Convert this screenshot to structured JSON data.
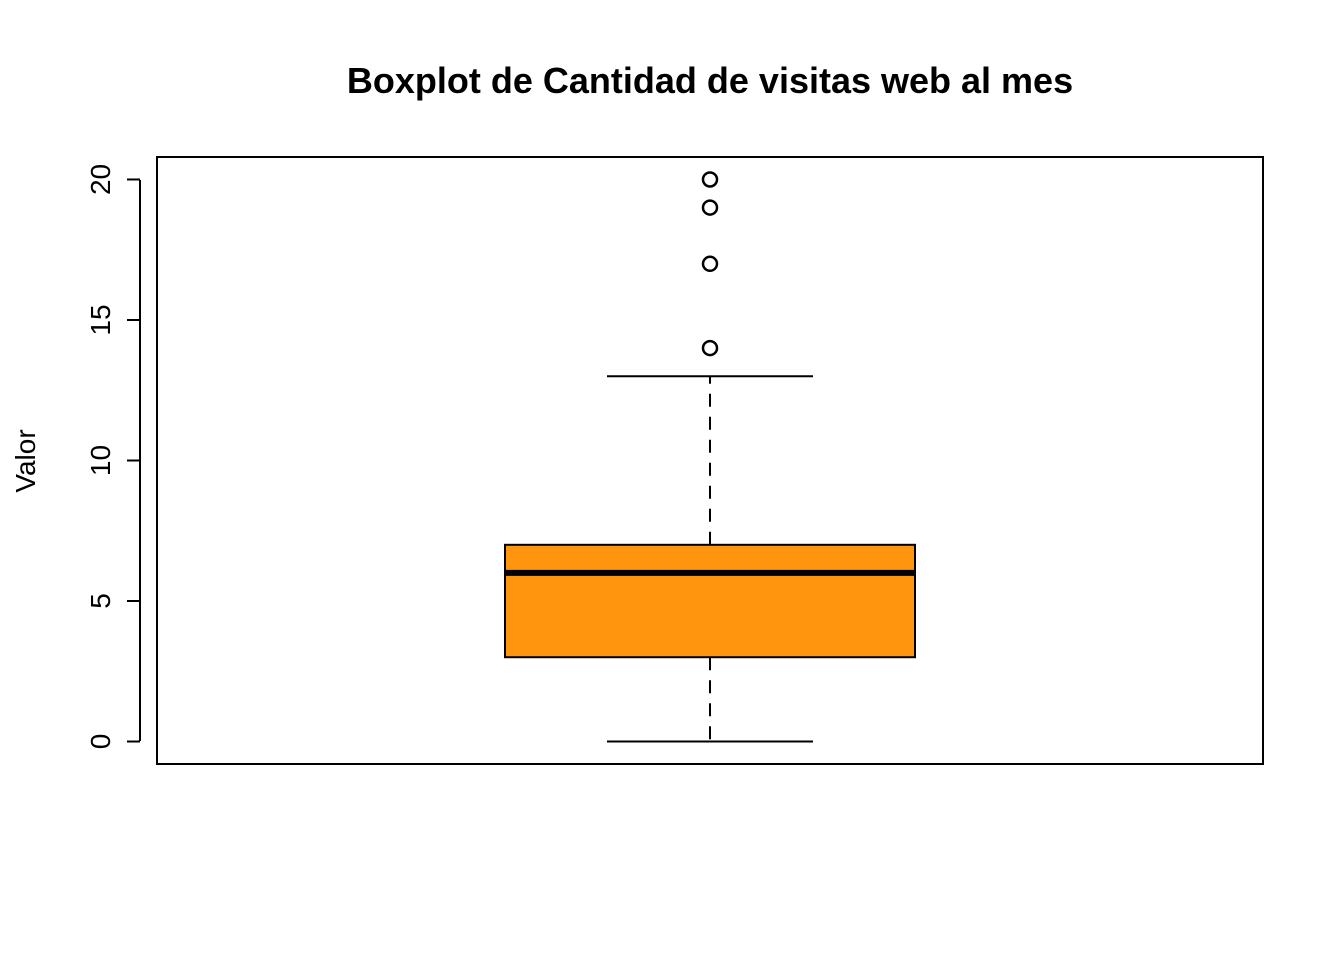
{
  "chart_data": {
    "type": "boxplot",
    "title": "Boxplot de Cantidad de visitas web al mes",
    "xlabel": "",
    "ylabel": "Valor",
    "ylim": [
      -0.8,
      20.8
    ],
    "yticks": [
      0,
      5,
      10,
      15,
      20
    ],
    "grid": false,
    "box": {
      "whisker_low": 0,
      "q1": 3,
      "median": 6,
      "q3": 7,
      "whisker_high": 13,
      "outliers": [
        14,
        17,
        19,
        20
      ]
    },
    "colors": {
      "box_fill": "#FF940E",
      "stroke": "#000000"
    }
  }
}
